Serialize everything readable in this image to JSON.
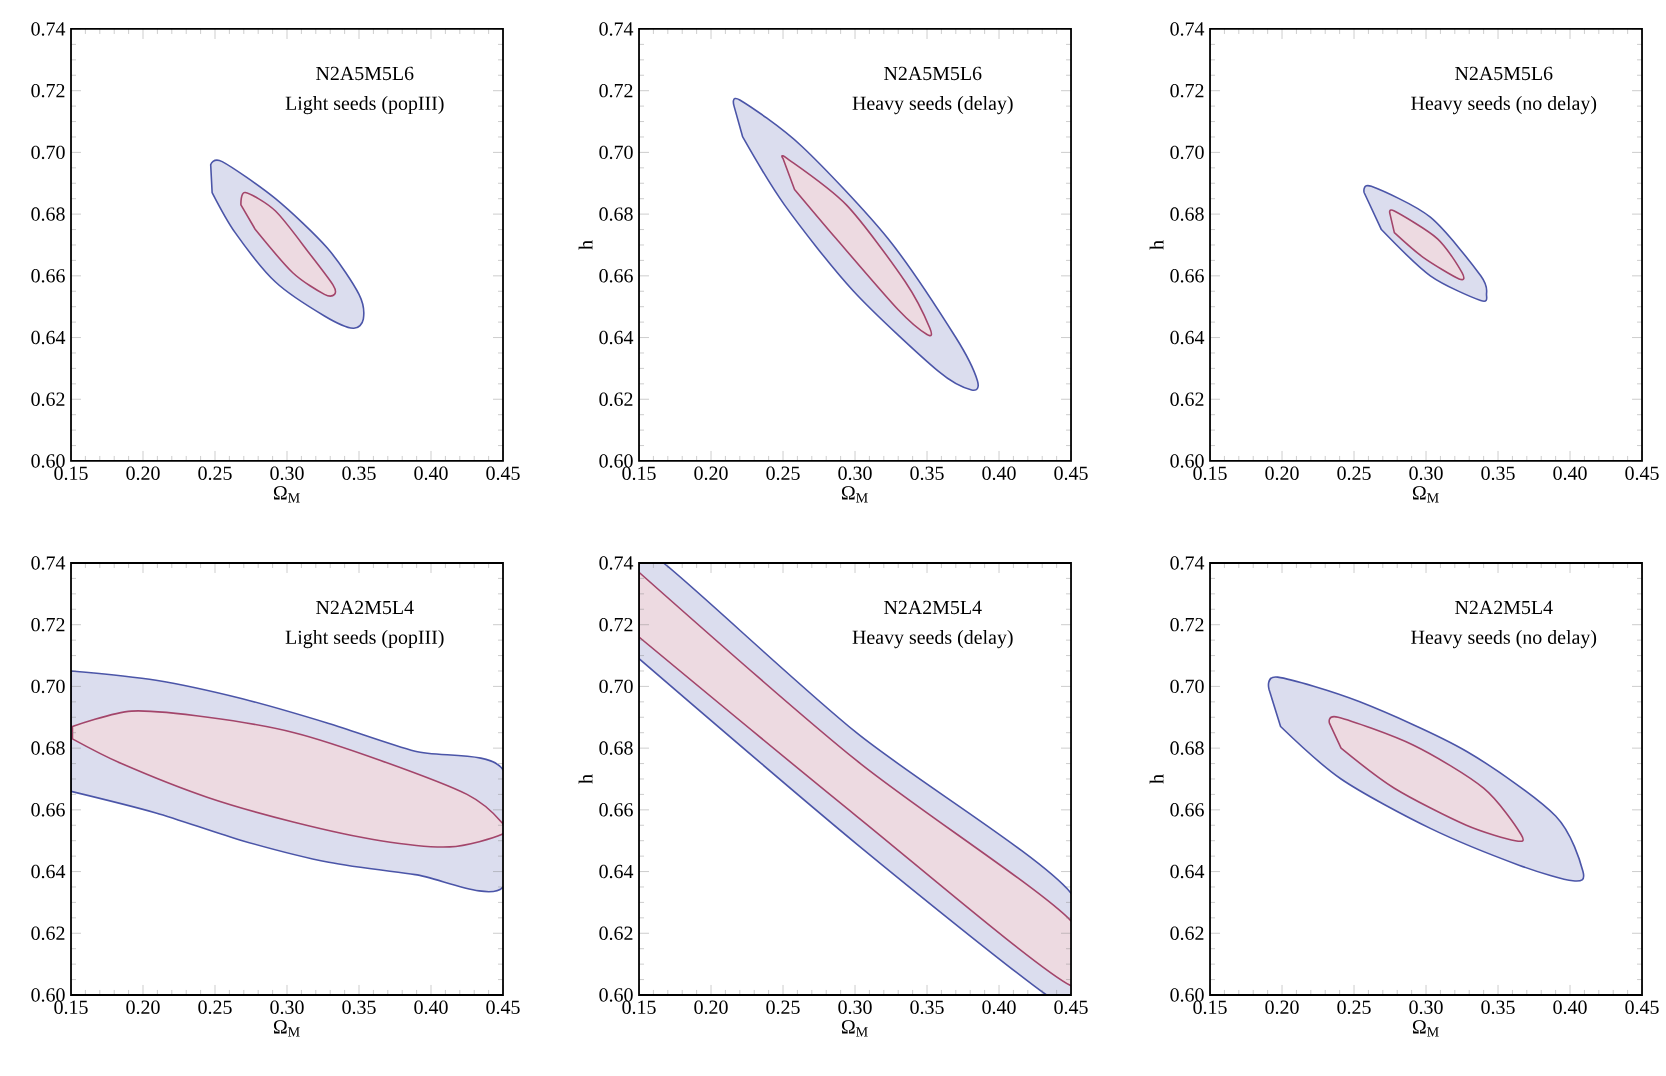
{
  "chart_data": [
    {
      "type": "area",
      "xlabel": "Ω$_{M}$",
      "annotations": [
        "N2A5M5L6",
        "Light seeds (popIII)"
      ],
      "xlim": [
        0.15,
        0.45
      ],
      "ylim": [
        0.6,
        0.74
      ],
      "xticks": [
        {
          "value": 0.15,
          "label": "0.15"
        },
        {
          "value": 0.2,
          "label": "0.20"
        },
        {
          "value": 0.25,
          "label": "0.25"
        },
        {
          "value": 0.3,
          "label": "0.30"
        },
        {
          "value": 0.35,
          "label": "0.35"
        },
        {
          "value": 0.4,
          "label": "0.40"
        },
        {
          "value": 0.45,
          "label": "0.45"
        }
      ],
      "yticks": [
        {
          "value": 0.6,
          "label": "0.60"
        },
        {
          "value": 0.62,
          "label": "0.62"
        },
        {
          "value": 0.64,
          "label": "0.64"
        },
        {
          "value": 0.66,
          "label": "0.66"
        },
        {
          "value": 0.68,
          "label": "0.68"
        },
        {
          "value": 0.7,
          "label": "0.70"
        },
        {
          "value": 0.72,
          "label": "0.72"
        },
        {
          "value": 0.74,
          "label": "0.74"
        }
      ],
      "series": [
        {
          "color": "#4b55a8",
          "x": [
            0.247,
            0.255,
            0.292,
            0.328,
            0.35,
            0.353,
            0.346,
            0.326,
            0.292,
            0.264,
            0.248
          ],
          "values": [
            0.696,
            0.697,
            0.685,
            0.669,
            0.654,
            0.646,
            0.643,
            0.647,
            0.658,
            0.674,
            0.687
          ]
        },
        {
          "color": "#a3456a",
          "x": [
            0.268,
            0.271,
            0.292,
            0.316,
            0.332,
            0.333,
            0.326,
            0.304,
            0.278
          ],
          "values": [
            0.683,
            0.687,
            0.681,
            0.667,
            0.657,
            0.654,
            0.654,
            0.661,
            0.675
          ]
        }
      ]
    },
    {
      "type": "area",
      "xlabel": "Ω$_{M}$",
      "ylabel": "h",
      "annotations": [
        "N2A5M5L6",
        "Heavy seeds (delay)"
      ],
      "xlim": [
        0.15,
        0.45
      ],
      "ylim": [
        0.6,
        0.74
      ],
      "xticks": [
        {
          "value": 0.15,
          "label": "0.15"
        },
        {
          "value": 0.2,
          "label": "0.20"
        },
        {
          "value": 0.25,
          "label": "0.25"
        },
        {
          "value": 0.3,
          "label": "0.30"
        },
        {
          "value": 0.35,
          "label": "0.35"
        },
        {
          "value": 0.4,
          "label": "0.40"
        },
        {
          "value": 0.45,
          "label": "0.45"
        }
      ],
      "yticks": [
        {
          "value": 0.6,
          "label": "0.60"
        },
        {
          "value": 0.62,
          "label": "0.62"
        },
        {
          "value": 0.64,
          "label": "0.64"
        },
        {
          "value": 0.66,
          "label": "0.66"
        },
        {
          "value": 0.68,
          "label": "0.68"
        },
        {
          "value": 0.7,
          "label": "0.70"
        },
        {
          "value": 0.72,
          "label": "0.72"
        },
        {
          "value": 0.74,
          "label": "0.74"
        }
      ],
      "series": [
        {
          "color": "#4b55a8",
          "x": [
            0.216,
            0.22,
            0.263,
            0.323,
            0.37,
            0.385,
            0.381,
            0.358,
            0.299,
            0.251,
            0.222
          ],
          "values": [
            0.715,
            0.717,
            0.702,
            0.672,
            0.64,
            0.626,
            0.623,
            0.629,
            0.655,
            0.683,
            0.705
          ]
        },
        {
          "color": "#a3456a",
          "x": [
            0.25,
            0.253,
            0.294,
            0.335,
            0.352,
            0.35,
            0.33,
            0.287,
            0.258
          ],
          "values": [
            0.698,
            0.698,
            0.683,
            0.658,
            0.643,
            0.641,
            0.649,
            0.672,
            0.688
          ]
        }
      ]
    },
    {
      "type": "area",
      "xlabel": "Ω$_{M}$",
      "ylabel": "h",
      "annotations": [
        "N2A5M5L6",
        "Heavy seeds (no delay)"
      ],
      "xlim": [
        0.15,
        0.45
      ],
      "ylim": [
        0.6,
        0.74
      ],
      "xticks": [
        {
          "value": 0.15,
          "label": "0.15"
        },
        {
          "value": 0.2,
          "label": "0.20"
        },
        {
          "value": 0.25,
          "label": "0.25"
        },
        {
          "value": 0.3,
          "label": "0.30"
        },
        {
          "value": 0.35,
          "label": "0.35"
        },
        {
          "value": 0.4,
          "label": "0.40"
        },
        {
          "value": 0.45,
          "label": "0.45"
        }
      ],
      "yticks": [
        {
          "value": 0.6,
          "label": "0.60"
        },
        {
          "value": 0.62,
          "label": "0.62"
        },
        {
          "value": 0.64,
          "label": "0.64"
        },
        {
          "value": 0.66,
          "label": "0.66"
        },
        {
          "value": 0.68,
          "label": "0.68"
        },
        {
          "value": 0.7,
          "label": "0.70"
        },
        {
          "value": 0.72,
          "label": "0.72"
        },
        {
          "value": 0.74,
          "label": "0.74"
        }
      ],
      "series": [
        {
          "color": "#4b55a8",
          "x": [
            0.257,
            0.262,
            0.303,
            0.338,
            0.342,
            0.338,
            0.303,
            0.269
          ],
          "values": [
            0.687,
            0.689,
            0.679,
            0.66,
            0.654,
            0.652,
            0.66,
            0.675
          ]
        },
        {
          "color": "#a3456a",
          "x": [
            0.275,
            0.278,
            0.308,
            0.325,
            0.323,
            0.298,
            0.278
          ],
          "values": [
            0.68,
            0.681,
            0.672,
            0.661,
            0.659,
            0.666,
            0.674
          ]
        }
      ]
    },
    {
      "type": "area",
      "xlabel": "Ω$_{M}$",
      "annotations": [
        "N2A2M5L4",
        "Light seeds (popIII)"
      ],
      "xlim": [
        0.15,
        0.45
      ],
      "ylim": [
        0.6,
        0.74
      ],
      "xticks": [
        {
          "value": 0.15,
          "label": "0.15"
        },
        {
          "value": 0.2,
          "label": "0.20"
        },
        {
          "value": 0.25,
          "label": "0.25"
        },
        {
          "value": 0.3,
          "label": "0.30"
        },
        {
          "value": 0.35,
          "label": "0.35"
        },
        {
          "value": 0.4,
          "label": "0.40"
        },
        {
          "value": 0.45,
          "label": "0.45"
        }
      ],
      "yticks": [
        {
          "value": 0.6,
          "label": "0.60"
        },
        {
          "value": 0.62,
          "label": "0.62"
        },
        {
          "value": 0.64,
          "label": "0.64"
        },
        {
          "value": 0.66,
          "label": "0.66"
        },
        {
          "value": 0.68,
          "label": "0.68"
        },
        {
          "value": 0.7,
          "label": "0.70"
        },
        {
          "value": 0.72,
          "label": "0.72"
        },
        {
          "value": 0.74,
          "label": "0.74"
        }
      ],
      "series": [
        {
          "color": "#4b55a8",
          "x": [
            0.15,
            0.209,
            0.269,
            0.329,
            0.389,
            0.45,
            0.45,
            0.389,
            0.329,
            0.269,
            0.209,
            0.15
          ],
          "values": [
            0.705,
            0.702,
            0.696,
            0.688,
            0.679,
            0.673,
            0.635,
            0.639,
            0.643,
            0.65,
            0.659,
            0.666
          ]
        },
        {
          "color": "#a3456a",
          "x": [
            0.151,
            0.192,
            0.245,
            0.305,
            0.365,
            0.425,
            0.449,
            0.449,
            0.413,
            0.365,
            0.305,
            0.245,
            0.185,
            0.151
          ],
          "values": [
            0.687,
            0.692,
            0.69,
            0.685,
            0.676,
            0.665,
            0.656,
            0.652,
            0.648,
            0.65,
            0.656,
            0.664,
            0.675,
            0.683
          ]
        }
      ]
    },
    {
      "type": "area",
      "xlabel": "Ω$_{M}$",
      "ylabel": "h",
      "annotations": [
        "N2A2M5L4",
        "Heavy seeds (delay)"
      ],
      "xlim": [
        0.15,
        0.45
      ],
      "ylim": [
        0.6,
        0.74
      ],
      "xticks": [
        {
          "value": 0.15,
          "label": "0.15"
        },
        {
          "value": 0.2,
          "label": "0.20"
        },
        {
          "value": 0.25,
          "label": "0.25"
        },
        {
          "value": 0.3,
          "label": "0.30"
        },
        {
          "value": 0.35,
          "label": "0.35"
        },
        {
          "value": 0.4,
          "label": "0.40"
        },
        {
          "value": 0.45,
          "label": "0.45"
        }
      ],
      "yticks": [
        {
          "value": 0.6,
          "label": "0.60"
        },
        {
          "value": 0.62,
          "label": "0.62"
        },
        {
          "value": 0.64,
          "label": "0.64"
        },
        {
          "value": 0.66,
          "label": "0.66"
        },
        {
          "value": 0.68,
          "label": "0.68"
        },
        {
          "value": 0.7,
          "label": "0.70"
        },
        {
          "value": 0.72,
          "label": "0.72"
        },
        {
          "value": 0.74,
          "label": "0.74"
        }
      ],
      "series": [
        {
          "color": "#4b55a8",
          "x": [
            0.15,
            0.167,
            0.301,
            0.45,
            0.45,
            0.433,
            0.301,
            0.15
          ],
          "values": [
            0.74,
            0.74,
            0.685,
            0.633,
            0.6,
            0.6,
            0.649,
            0.709
          ]
        },
        {
          "color": "#a3456a",
          "x": [
            0.15,
            0.301,
            0.45,
            0.45,
            0.301,
            0.15
          ],
          "values": [
            0.737,
            0.676,
            0.624,
            0.603,
            0.658,
            0.716
          ]
        }
      ]
    },
    {
      "type": "area",
      "xlabel": "Ω$_{M}$",
      "ylabel": "h",
      "annotations": [
        "N2A2M5L4",
        "Heavy seeds (no delay)"
      ],
      "xlim": [
        0.15,
        0.45
      ],
      "ylim": [
        0.6,
        0.74
      ],
      "xticks": [
        {
          "value": 0.15,
          "label": "0.15"
        },
        {
          "value": 0.2,
          "label": "0.20"
        },
        {
          "value": 0.25,
          "label": "0.25"
        },
        {
          "value": 0.3,
          "label": "0.30"
        },
        {
          "value": 0.35,
          "label": "0.35"
        },
        {
          "value": 0.4,
          "label": "0.40"
        },
        {
          "value": 0.45,
          "label": "0.45"
        }
      ],
      "yticks": [
        {
          "value": 0.6,
          "label": "0.60"
        },
        {
          "value": 0.62,
          "label": "0.62"
        },
        {
          "value": 0.64,
          "label": "0.64"
        },
        {
          "value": 0.66,
          "label": "0.66"
        },
        {
          "value": 0.68,
          "label": "0.68"
        },
        {
          "value": 0.7,
          "label": "0.70"
        },
        {
          "value": 0.72,
          "label": "0.72"
        },
        {
          "value": 0.74,
          "label": "0.74"
        }
      ],
      "series": [
        {
          "color": "#4b55a8",
          "x": [
            0.191,
            0.197,
            0.254,
            0.328,
            0.39,
            0.409,
            0.402,
            0.365,
            0.303,
            0.241,
            0.199
          ],
          "values": [
            0.699,
            0.703,
            0.695,
            0.679,
            0.658,
            0.64,
            0.637,
            0.642,
            0.654,
            0.67,
            0.687
          ]
        },
        {
          "color": "#a3456a",
          "x": [
            0.233,
            0.239,
            0.291,
            0.34,
            0.366,
            0.362,
            0.328,
            0.278,
            0.241
          ],
          "values": [
            0.688,
            0.69,
            0.681,
            0.667,
            0.652,
            0.65,
            0.655,
            0.667,
            0.68
          ]
        }
      ]
    }
  ]
}
